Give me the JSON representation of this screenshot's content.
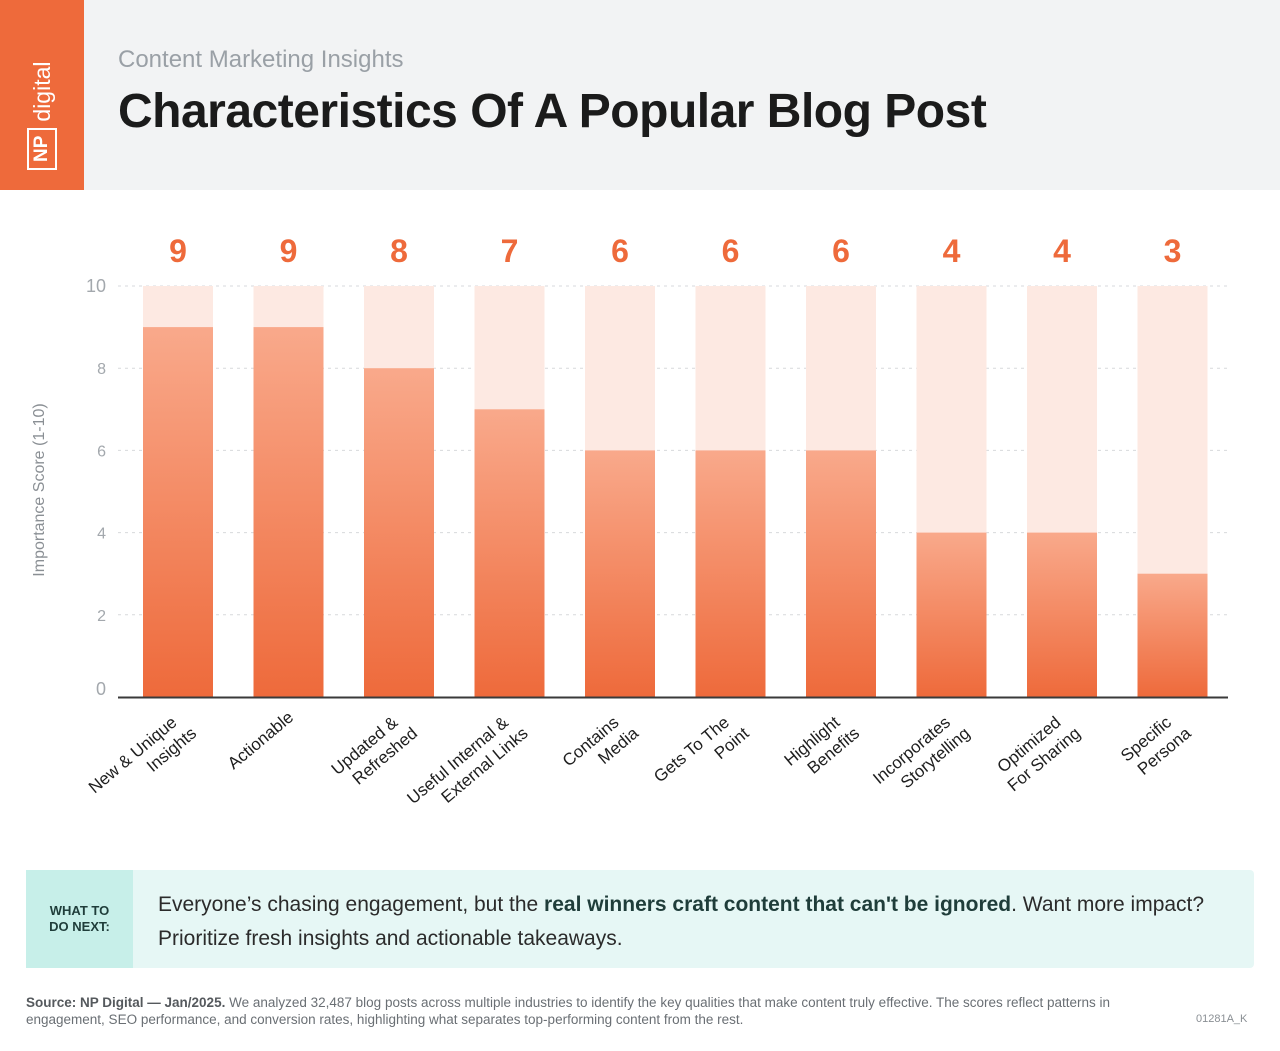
{
  "header": {
    "logo_np": "NP",
    "logo_digital": "digital",
    "subtitle": "Content Marketing Insights",
    "title": "Characteristics Of A Popular Blog Post"
  },
  "colors": {
    "accent": "#ee6a3b",
    "bar_top": "#f9a98b",
    "bar_bottom": "#ee6a3b",
    "track": "#fde9e2",
    "callout_bg": "#e6f7f5",
    "callout_label_bg": "#c7efe9"
  },
  "chart_data": {
    "type": "bar",
    "title": "Characteristics Of A Popular Blog Post",
    "xlabel": "",
    "ylabel": "Importance Score (1-10)",
    "ylim": [
      0,
      10
    ],
    "yticks": [
      0,
      2,
      4,
      6,
      8,
      10
    ],
    "grid": true,
    "categories": [
      [
        "New & Unique",
        "Insights"
      ],
      [
        "Actionable"
      ],
      [
        "Updated &",
        "Refreshed"
      ],
      [
        "Useful Internal &",
        "External Links"
      ],
      [
        "Contains",
        "Media"
      ],
      [
        "Gets To The",
        "Point"
      ],
      [
        "Highlight",
        "Benefits"
      ],
      [
        "Incorporates",
        "Storytelling"
      ],
      [
        "Optimized",
        "For Sharing"
      ],
      [
        "Specific",
        "Persona"
      ]
    ],
    "values": [
      9,
      9,
      8,
      7,
      6,
      6,
      6,
      4,
      4,
      3
    ],
    "value_labels": [
      "9",
      "9",
      "8",
      "7",
      "6",
      "6",
      "6",
      "4",
      "4",
      "3"
    ]
  },
  "callout": {
    "label": "WHAT TO DO NEXT:",
    "text_before": "Everyone’s chasing engagement, but the ",
    "text_bold": "real winners craft content that can't be ignored",
    "text_after": ". Want more impact? Prioritize fresh insights and actionable takeaways."
  },
  "source": {
    "bold": "Source: NP Digital — Jan/2025.",
    "text": " We analyzed 32,487 blog posts across multiple industries to identify the key qualities that make content truly effective. The scores reflect patterns in engagement, SEO performance, and conversion rates, highlighting what separates top-performing content from the rest.",
    "code": "01281A_K"
  }
}
